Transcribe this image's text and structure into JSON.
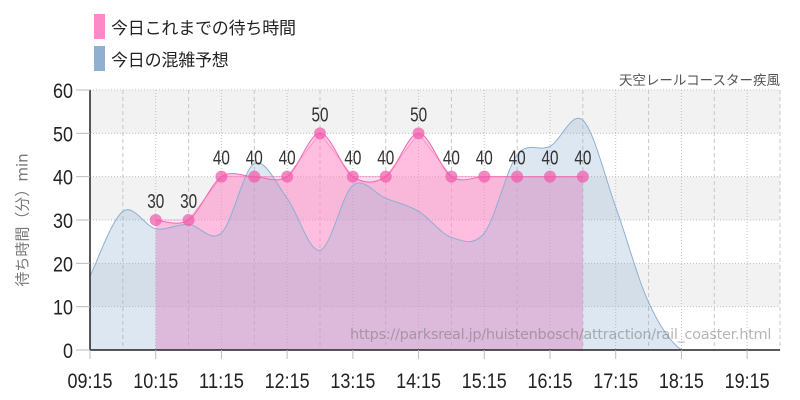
{
  "legend": {
    "items": [
      {
        "label": "今日これまでの待ち時間",
        "color": "#ff88c8"
      },
      {
        "label": "今日の混雑予想",
        "color": "#8fb0d0"
      }
    ]
  },
  "subtitle": "天空レールコースター疾風",
  "watermark": "https://parksreal.jp/huistenbosch/attraction/rail_coaster.html",
  "colors": {
    "actual_line": "#f06ab4",
    "actual_marker": "#f05aaa",
    "actual_fill": "#ff88c8",
    "forecast_line": "#8fb0d0",
    "forecast_fill": "#8fb0d0",
    "band": "#f2f2f2",
    "grid": "#c0c0c0",
    "axis": "#222222"
  },
  "chart_data": {
    "type": "area",
    "title": "天空レールコースター疾風",
    "xlabel": "",
    "ylabel": "待ち時間（分）min",
    "ylim": [
      0,
      60
    ],
    "yticks": [
      0,
      10,
      20,
      30,
      40,
      50,
      60
    ],
    "xlim": [
      "09:15",
      "19:45"
    ],
    "xticks": [
      "09:15",
      "10:15",
      "11:15",
      "12:15",
      "13:15",
      "14:15",
      "15:15",
      "16:15",
      "17:15",
      "18:15",
      "19:15"
    ],
    "grid": true,
    "legend_position": "top-left",
    "series": [
      {
        "name": "今日これまでの待ち時間",
        "style": "spline-area+markers+labels",
        "x": [
          "10:15",
          "10:45",
          "11:15",
          "11:45",
          "12:15",
          "12:45",
          "13:15",
          "13:45",
          "14:15",
          "14:45",
          "15:15",
          "15:45",
          "16:15",
          "16:45"
        ],
        "values": [
          30,
          30,
          40,
          40,
          40,
          50,
          40,
          40,
          50,
          40,
          40,
          40,
          40,
          40
        ]
      },
      {
        "name": "今日の混雑予想",
        "style": "spline-area",
        "x": [
          "09:15",
          "09:45",
          "10:15",
          "10:45",
          "11:15",
          "11:45",
          "12:15",
          "12:45",
          "13:15",
          "13:45",
          "14:15",
          "14:45",
          "15:15",
          "15:45",
          "16:15",
          "16:45",
          "17:15",
          "17:45",
          "18:15",
          "18:45",
          "19:15",
          "19:45"
        ],
        "values": [
          17,
          32,
          28,
          29,
          27,
          43,
          35,
          23,
          38,
          35,
          32,
          26,
          27,
          45,
          47,
          53,
          33,
          11,
          0,
          0,
          0,
          0
        ]
      }
    ]
  }
}
